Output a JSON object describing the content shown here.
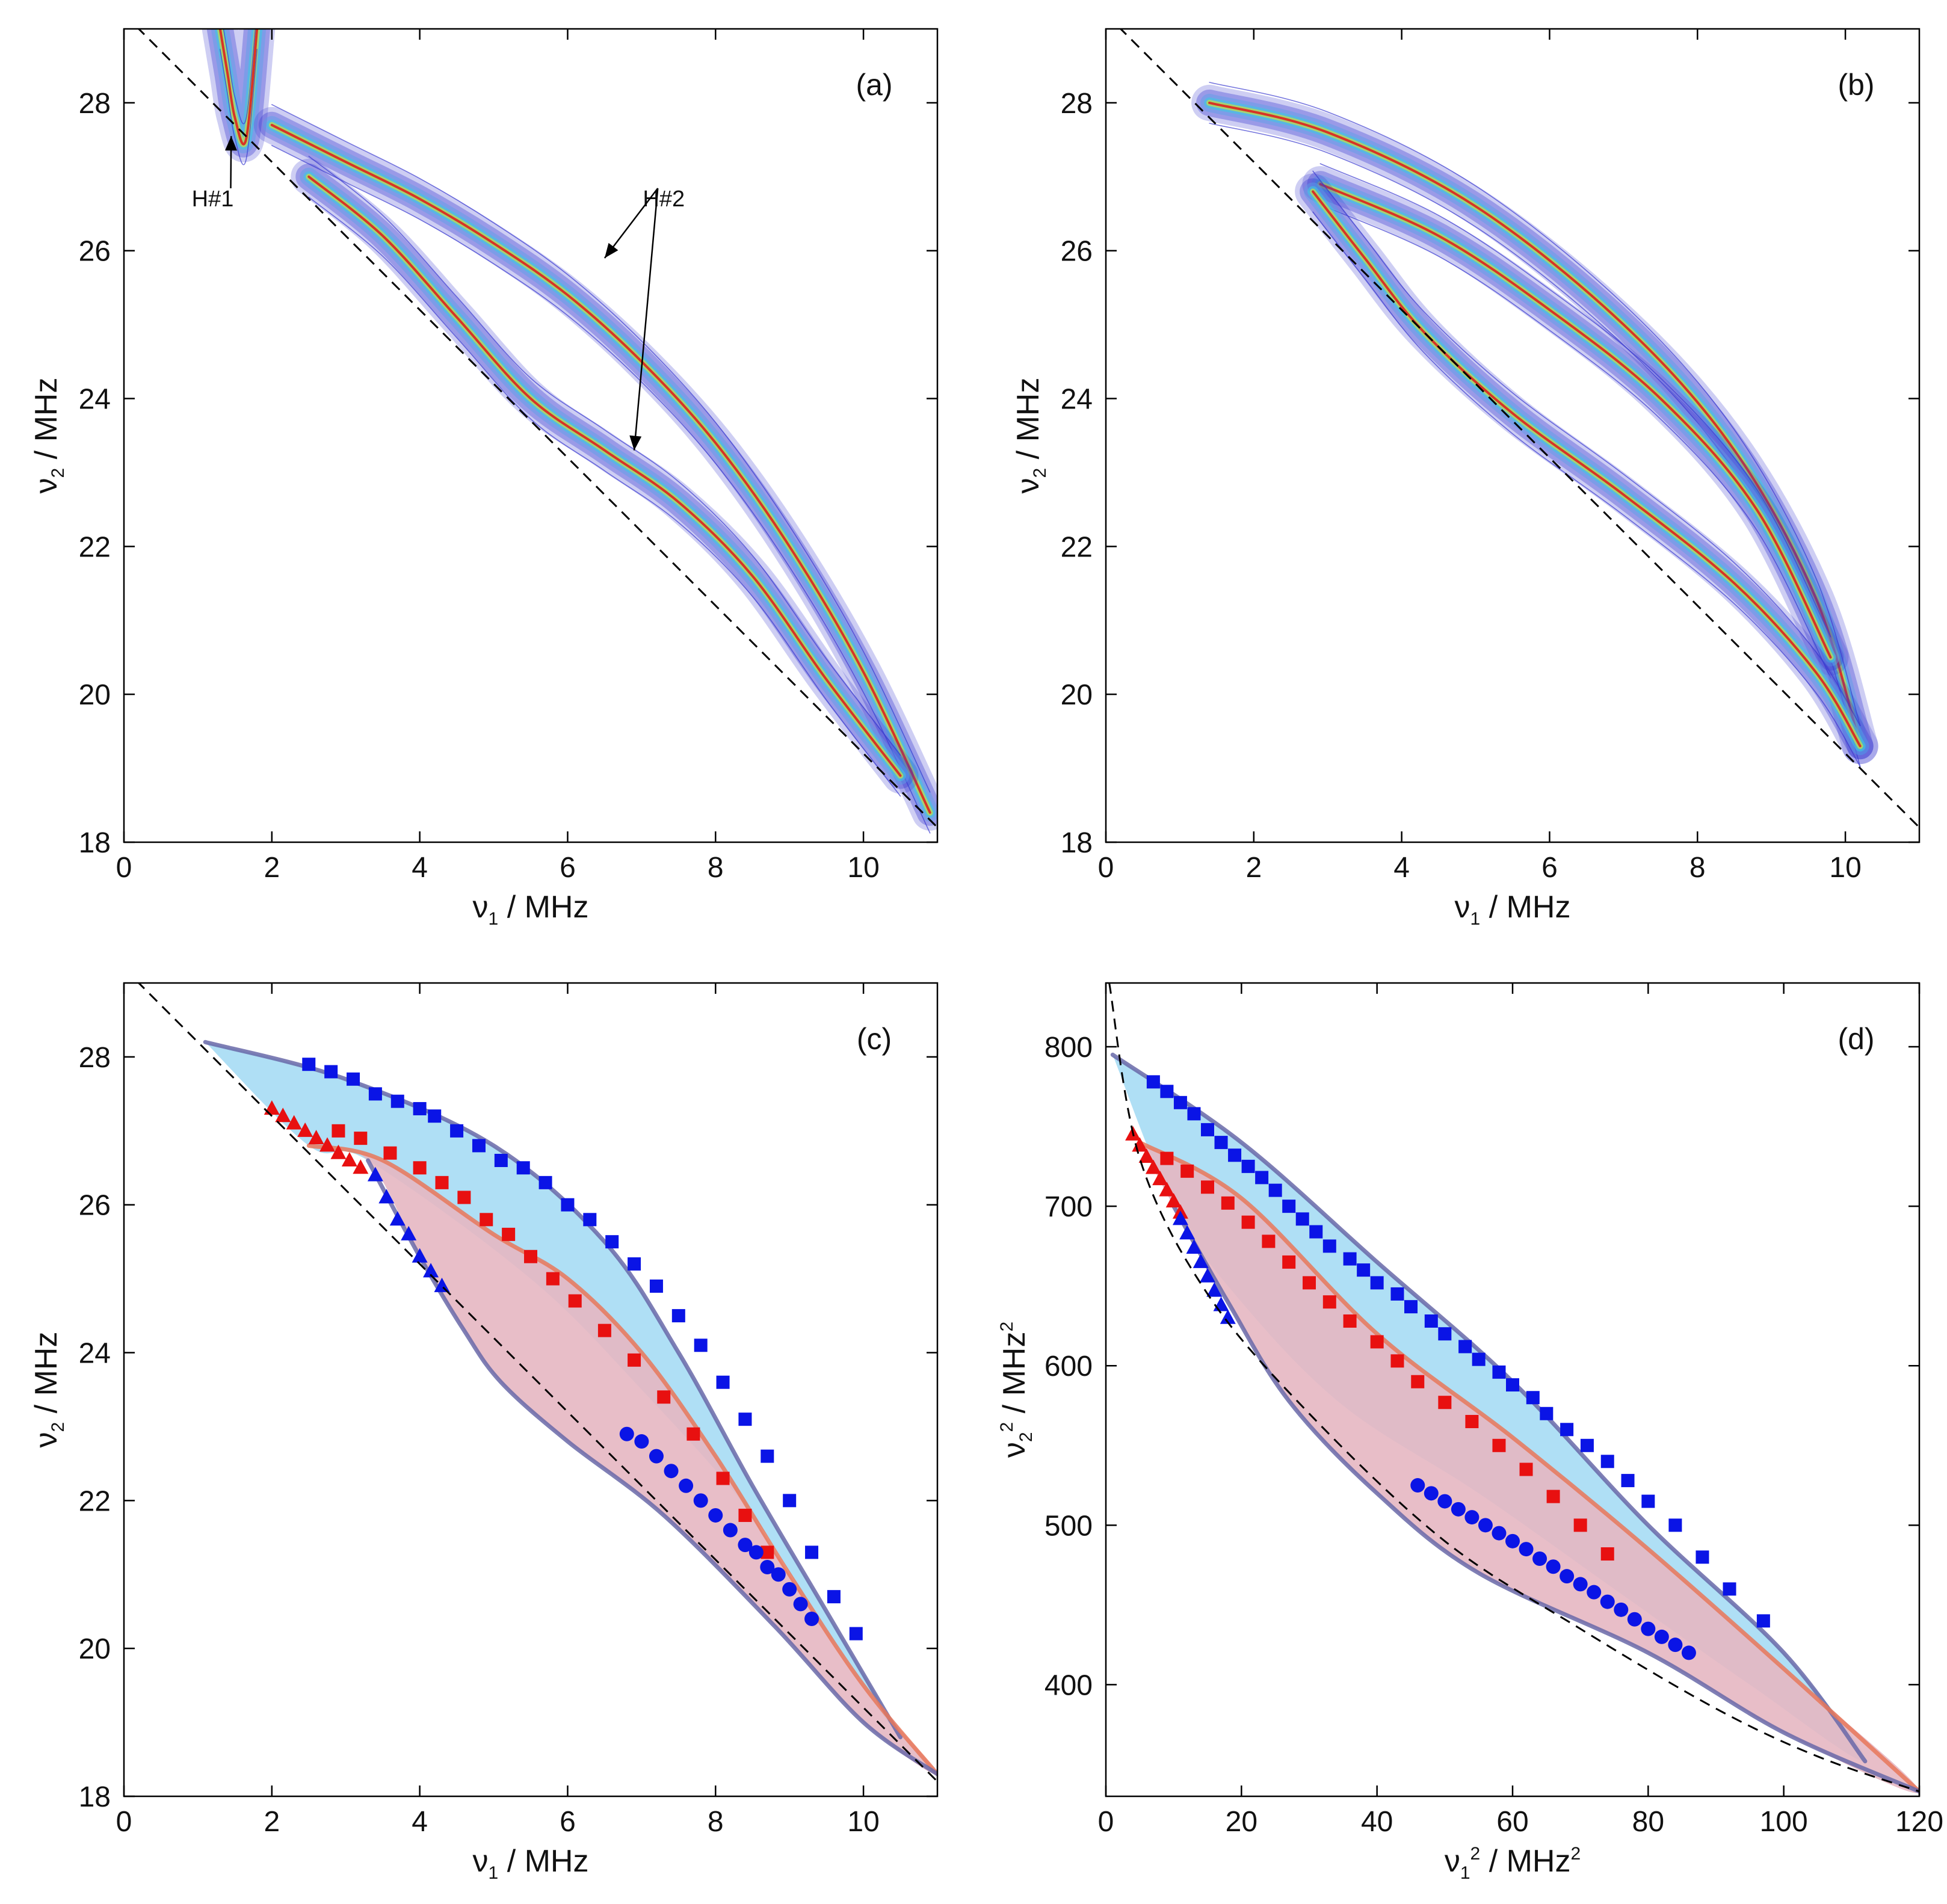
{
  "figure": {
    "colors": {
      "axis": "#000000",
      "dashed": "#000000",
      "blue_marker": "#0a14e6",
      "red_marker": "#e81010",
      "blue_fill": "#a6dcf4",
      "pink_fill": "#e6b7c2",
      "upper_edge": "#6868a8",
      "orange_edge": "#e8785a",
      "contour_low": "#3a3ad0",
      "contour_mid": "#40c8e0",
      "contour_high": "#e01818"
    },
    "icons": [
      "arrow-annotation-icon"
    ]
  },
  "chart_data": [
    {
      "panel": "(a)",
      "type": "contour",
      "title": "",
      "xlabel": "ν₁ / MHz",
      "ylabel": "ν₂ / MHz",
      "xlim": [
        0,
        11
      ],
      "ylim": [
        18,
        29
      ],
      "xticks": [
        0,
        2,
        4,
        6,
        8,
        10
      ],
      "yticks": [
        18,
        20,
        22,
        24,
        26,
        28
      ],
      "dashed_line": {
        "label": "ν₁ + ν₂ = 29.2 MHz limit",
        "x0": 0,
        "y0": 29.2,
        "x1": 11,
        "y1": 18.2
      },
      "annotations": [
        {
          "text": "H#1",
          "at": [
            1.2,
            26.6
          ],
          "arrow_to": [
            1.45,
            27.55
          ]
        },
        {
          "text": "H#2",
          "at": [
            7.3,
            26.6
          ],
          "arrow_to": [
            [
              6.5,
              25.9
            ],
            [
              6.9,
              23.3
            ]
          ]
        }
      ],
      "ridges": [
        {
          "name": "H#1 ridge",
          "x": [
            1.3,
            1.4,
            1.5,
            1.65,
            1.8
          ],
          "y": [
            29.0,
            28.4,
            27.8,
            27.5,
            29.0
          ]
        },
        {
          "name": "outer ridge",
          "x": [
            2.0,
            3.0,
            4.0,
            5.0,
            6.0,
            7.0,
            8.0,
            9.0,
            10.0,
            10.9
          ],
          "y": [
            27.7,
            27.2,
            26.7,
            26.1,
            25.4,
            24.5,
            23.4,
            22.0,
            20.3,
            18.4
          ]
        },
        {
          "name": "inner ridge",
          "x": [
            2.5,
            3.5,
            4.5,
            5.5,
            6.5,
            7.5,
            8.5,
            9.5,
            10.5
          ],
          "y": [
            27.0,
            26.2,
            25.1,
            24.0,
            23.3,
            22.6,
            21.6,
            20.2,
            18.9
          ]
        }
      ]
    },
    {
      "panel": "(b)",
      "type": "contour",
      "title": "",
      "xlabel": "ν₁ / MHz",
      "ylabel": "ν₂ / MHz",
      "xlim": [
        0,
        11
      ],
      "ylim": [
        18,
        29
      ],
      "xticks": [
        0,
        2,
        4,
        6,
        8,
        10
      ],
      "yticks": [
        18,
        20,
        22,
        24,
        26,
        28
      ],
      "dashed_line": {
        "label": "ν₁ + ν₂ = 29.2 MHz limit",
        "x0": 0,
        "y0": 29.2,
        "x1": 11,
        "y1": 18.2
      },
      "ridges": [
        {
          "name": "upper arc",
          "x": [
            1.4,
            3.0,
            5.0,
            7.0,
            8.5,
            9.6,
            10.2
          ],
          "y": [
            28.0,
            27.6,
            26.6,
            25.0,
            23.3,
            21.3,
            19.3
          ]
        },
        {
          "name": "inner arc",
          "x": [
            2.9,
            4.5,
            6.0,
            7.5,
            8.8,
            9.8
          ],
          "y": [
            26.9,
            26.2,
            25.2,
            24.0,
            22.5,
            20.5
          ]
        },
        {
          "name": "lower arc",
          "x": [
            2.8,
            3.5,
            4.3,
            5.5,
            7.0,
            8.5,
            9.6,
            10.2
          ],
          "y": [
            26.8,
            25.9,
            24.9,
            23.8,
            22.7,
            21.5,
            20.3,
            19.3
          ]
        }
      ]
    },
    {
      "panel": "(c)",
      "type": "scatter",
      "title": "",
      "xlabel": "ν₁ / MHz",
      "ylabel": "ν₂ / MHz",
      "xlim": [
        0,
        11
      ],
      "ylim": [
        18,
        29
      ],
      "xticks": [
        0,
        2,
        4,
        6,
        8,
        10
      ],
      "yticks": [
        18,
        20,
        22,
        24,
        26,
        28
      ],
      "dashed_line": {
        "label": "ν₁ + ν₂ = 29.2 MHz limit",
        "x0": 0,
        "y0": 29.2,
        "x1": 11,
        "y1": 18.2
      },
      "regions": [
        {
          "name": "blue region",
          "boundary": [
            [
              1.1,
              28.2
            ],
            [
              3.0,
              27.7
            ],
            [
              5.0,
              26.8
            ],
            [
              6.5,
              25.5
            ],
            [
              7.5,
              24.0
            ],
            [
              8.5,
              22.2
            ],
            [
              9.5,
              20.5
            ],
            [
              10.5,
              18.8
            ],
            [
              9.5,
              20.2
            ],
            [
              8.5,
              21.8
            ],
            [
              7.0,
              23.5
            ],
            [
              5.5,
              25.0
            ],
            [
              3.3,
              26.6
            ],
            [
              2.5,
              26.8
            ],
            [
              1.1,
              28.2
            ]
          ]
        },
        {
          "name": "pink region",
          "boundary": [
            [
              2.5,
              26.8
            ],
            [
              3.5,
              26.6
            ],
            [
              5.0,
              25.6
            ],
            [
              6.0,
              25.0
            ],
            [
              7.0,
              24.0
            ],
            [
              8.0,
              22.6
            ],
            [
              9.0,
              21.0
            ],
            [
              10.0,
              19.5
            ],
            [
              11.0,
              18.3
            ],
            [
              10.0,
              19.0
            ],
            [
              8.8,
              20.3
            ],
            [
              7.3,
              21.8
            ],
            [
              6.0,
              22.8
            ],
            [
              5.1,
              23.6
            ],
            [
              4.6,
              24.3
            ],
            [
              4.0,
              25.3
            ],
            [
              3.3,
              26.6
            ],
            [
              2.5,
              26.8
            ]
          ]
        }
      ],
      "series": [
        {
          "name": "blue squares",
          "marker": "square",
          "x": [
            2.5,
            2.8,
            3.1,
            3.4,
            3.7,
            4.0,
            4.2,
            4.5,
            4.8,
            5.1,
            5.4,
            5.7,
            6.0,
            6.3,
            6.6,
            6.9,
            7.2,
            7.5,
            7.8,
            8.1,
            8.4,
            8.7,
            9.0,
            9.3,
            9.6,
            9.9
          ],
          "y": [
            27.9,
            27.8,
            27.7,
            27.5,
            27.4,
            27.3,
            27.2,
            27.0,
            26.8,
            26.6,
            26.5,
            26.3,
            26.0,
            25.8,
            25.5,
            25.2,
            24.9,
            24.5,
            24.1,
            23.6,
            23.1,
            22.6,
            22.0,
            21.3,
            20.7,
            20.2
          ]
        },
        {
          "name": "red squares",
          "marker": "square",
          "x": [
            2.9,
            3.2,
            3.6,
            4.0,
            4.3,
            4.6,
            4.9,
            5.2,
            5.5,
            5.8,
            6.1,
            6.5,
            6.9,
            7.3,
            7.7,
            8.1,
            8.4,
            8.7
          ],
          "y": [
            27.0,
            26.9,
            26.7,
            26.5,
            26.3,
            26.1,
            25.8,
            25.6,
            25.3,
            25.0,
            24.7,
            24.3,
            23.9,
            23.4,
            22.9,
            22.3,
            21.8,
            21.3
          ]
        },
        {
          "name": "red triangles",
          "marker": "triangle",
          "x": [
            2.0,
            2.15,
            2.3,
            2.45,
            2.6,
            2.75,
            2.9,
            3.05,
            3.2
          ],
          "y": [
            27.3,
            27.2,
            27.1,
            27.0,
            26.9,
            26.8,
            26.7,
            26.6,
            26.5
          ]
        },
        {
          "name": "blue triangles",
          "marker": "triangle",
          "x": [
            3.4,
            3.55,
            3.7,
            3.85,
            4.0,
            4.15,
            4.3
          ],
          "y": [
            26.4,
            26.1,
            25.8,
            25.6,
            25.3,
            25.1,
            24.9
          ]
        },
        {
          "name": "blue circles",
          "marker": "circle",
          "x": [
            6.8,
            7.0,
            7.2,
            7.4,
            7.6,
            7.8,
            8.0,
            8.2,
            8.4,
            8.55,
            8.7,
            8.85,
            9.0,
            9.15,
            9.3
          ],
          "y": [
            22.9,
            22.8,
            22.6,
            22.4,
            22.2,
            22.0,
            21.8,
            21.6,
            21.4,
            21.3,
            21.1,
            21.0,
            20.8,
            20.6,
            20.4
          ]
        }
      ],
      "curves": [
        {
          "name": "upper edge",
          "x": [
            1.1,
            3.0,
            5.0,
            6.5,
            7.5,
            8.5,
            9.5,
            10.5
          ],
          "y": [
            28.2,
            27.7,
            26.8,
            25.5,
            24.0,
            22.2,
            20.5,
            18.8
          ]
        },
        {
          "name": "orange edge",
          "x": [
            2.5,
            3.5,
            5.0,
            6.0,
            7.0,
            8.0,
            9.0,
            10.0,
            11.0
          ],
          "y": [
            26.8,
            26.6,
            25.6,
            25.0,
            24.0,
            22.6,
            21.0,
            19.5,
            18.3
          ]
        },
        {
          "name": "lower edge",
          "x": [
            3.3,
            4.0,
            4.6,
            5.1,
            6.0,
            7.3,
            8.8,
            10.0,
            11.0
          ],
          "y": [
            26.6,
            25.3,
            24.3,
            23.6,
            22.8,
            21.8,
            20.3,
            19.0,
            18.3
          ]
        }
      ]
    },
    {
      "panel": "(d)",
      "type": "scatter",
      "title": "",
      "xlabel": "ν₁² / MHz²",
      "ylabel": "ν₂² / MHz²",
      "xlim": [
        0,
        120
      ],
      "ylim": [
        330,
        840
      ],
      "xticks": [
        0,
        20,
        40,
        60,
        80,
        100,
        120
      ],
      "yticks": [
        400,
        500,
        600,
        700,
        800
      ],
      "dashed_line": {
        "label": "(ν₁ + ν₂)² limit",
        "x": [
          0.5,
          5,
          15,
          30,
          50,
          70,
          90,
          105,
          120
        ],
        "y": [
          840,
          730,
          645,
          570,
          490,
          435,
          385,
          355,
          333
        ]
      },
      "regions": [
        {
          "name": "blue region",
          "boundary": [
            [
              1,
              795
            ],
            [
              20,
              740
            ],
            [
              40,
              665
            ],
            [
              60,
              590
            ],
            [
              80,
              500
            ],
            [
              100,
              420
            ],
            [
              112,
              352
            ],
            [
              95,
              400
            ],
            [
              75,
              460
            ],
            [
              55,
              520
            ],
            [
              35,
              575
            ],
            [
              20,
              640
            ],
            [
              10,
              700
            ],
            [
              1,
              795
            ]
          ]
        },
        {
          "name": "pink region",
          "boundary": [
            [
              5,
              740
            ],
            [
              20,
              705
            ],
            [
              40,
              620
            ],
            [
              60,
              555
            ],
            [
              80,
              485
            ],
            [
              100,
              410
            ],
            [
              120,
              333
            ],
            [
              100,
              370
            ],
            [
              80,
              420
            ],
            [
              55,
              470
            ],
            [
              40,
              520
            ],
            [
              27,
              578
            ],
            [
              18,
              640
            ],
            [
              10,
              700
            ],
            [
              5,
              740
            ]
          ]
        }
      ],
      "series": [
        {
          "name": "blue squares",
          "marker": "square",
          "x": [
            7,
            9,
            11,
            13,
            15,
            17,
            19,
            21,
            23,
            25,
            27,
            29,
            31,
            33,
            36,
            38,
            40,
            43,
            45,
            48,
            50,
            53,
            55,
            58,
            60,
            63,
            65,
            68,
            71,
            74,
            77,
            80,
            84,
            88,
            92,
            97
          ],
          "y": [
            778,
            772,
            765,
            758,
            748,
            740,
            732,
            725,
            718,
            710,
            700,
            692,
            684,
            675,
            667,
            660,
            652,
            645,
            637,
            628,
            620,
            612,
            604,
            596,
            588,
            580,
            570,
            560,
            550,
            540,
            528,
            515,
            500,
            480,
            460,
            440
          ]
        },
        {
          "name": "red squares",
          "marker": "square",
          "x": [
            9,
            12,
            15,
            18,
            21,
            24,
            27,
            30,
            33,
            36,
            40,
            43,
            46,
            50,
            54,
            58,
            62,
            66,
            70,
            74
          ],
          "y": [
            730,
            722,
            712,
            702,
            690,
            678,
            665,
            652,
            640,
            628,
            615,
            603,
            590,
            577,
            565,
            550,
            535,
            518,
            500,
            482
          ]
        },
        {
          "name": "red triangles",
          "marker": "triangle",
          "x": [
            4,
            5,
            6,
            7,
            8,
            9,
            10,
            11
          ],
          "y": [
            745,
            738,
            731,
            724,
            717,
            710,
            703,
            696
          ]
        },
        {
          "name": "blue triangles",
          "marker": "triangle",
          "x": [
            11,
            12,
            13,
            14,
            15,
            16,
            17,
            18
          ],
          "y": [
            692,
            683,
            674,
            665,
            656,
            647,
            638,
            630
          ]
        },
        {
          "name": "blue circles",
          "marker": "circle",
          "x": [
            46,
            48,
            50,
            52,
            54,
            56,
            58,
            60,
            62,
            64,
            66,
            68,
            70,
            72,
            74,
            76,
            78,
            80,
            82,
            84,
            86
          ],
          "y": [
            525,
            520,
            515,
            510,
            505,
            500,
            495,
            490,
            485,
            479,
            474,
            468,
            463,
            458,
            452,
            447,
            441,
            435,
            430,
            425,
            420
          ]
        }
      ],
      "curves": [
        {
          "name": "upper edge",
          "x": [
            1,
            20,
            40,
            60,
            80,
            100,
            112
          ],
          "y": [
            795,
            740,
            665,
            590,
            500,
            420,
            352
          ]
        },
        {
          "name": "orange edge",
          "x": [
            5,
            20,
            40,
            60,
            80,
            100,
            120
          ],
          "y": [
            740,
            705,
            620,
            555,
            485,
            410,
            333
          ]
        },
        {
          "name": "lower edge",
          "x": [
            10,
            18,
            27,
            40,
            55,
            80,
            100,
            120
          ],
          "y": [
            700,
            640,
            578,
            520,
            470,
            420,
            370,
            333
          ]
        }
      ]
    }
  ]
}
